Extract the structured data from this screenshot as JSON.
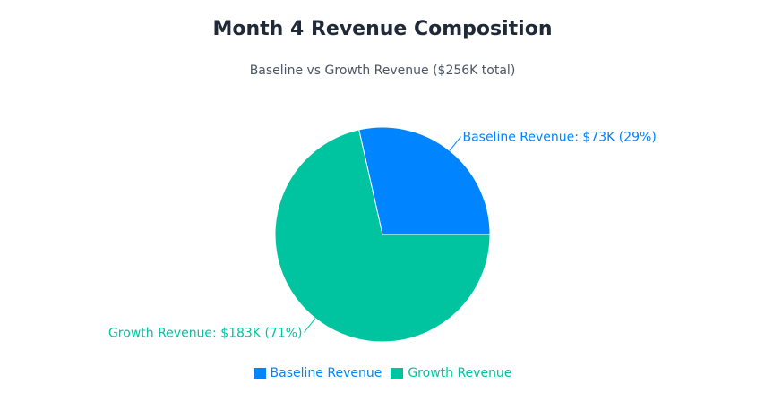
{
  "chart_data": {
    "type": "pie",
    "title": "Month 4 Revenue Composition",
    "subtitle": "Baseline vs Growth Revenue ($256K total)",
    "total": 256,
    "slices": [
      {
        "name": "Baseline Revenue",
        "value": 73,
        "percent": 29,
        "label": "Baseline Revenue: $73K (29%)",
        "color": "#0084ff"
      },
      {
        "name": "Growth Revenue",
        "value": 183,
        "percent": 71,
        "label": "Growth Revenue: $183K (71%)",
        "color": "#00c49f"
      }
    ],
    "legend": {
      "position": "bottom",
      "items": [
        {
          "label": "Baseline Revenue",
          "color": "#0084ff"
        },
        {
          "label": "Growth Revenue",
          "color": "#00c49f"
        }
      ]
    }
  }
}
